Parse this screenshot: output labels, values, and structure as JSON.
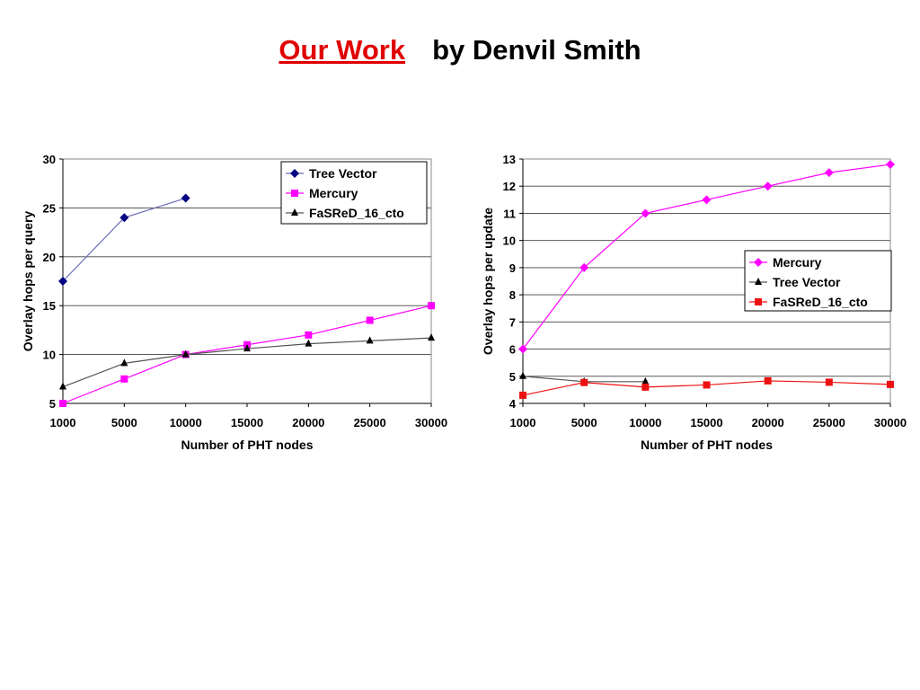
{
  "slide": {
    "title_highlight": "Our Work",
    "title_rest": "by Denvil Smith",
    "highlight_color": "#e00000"
  },
  "chart_data": [
    {
      "type": "line",
      "xlabel": "Number of PHT nodes",
      "ylabel": "Overlay hops per query",
      "ylim": [
        5,
        30
      ],
      "yticks": [
        5,
        10,
        15,
        20,
        25,
        30
      ],
      "xticks": [
        1000,
        5000,
        10000,
        15000,
        20000,
        25000,
        30000
      ],
      "grid": "horizontal",
      "legend_position": "top-right",
      "series": [
        {
          "name": "Tree Vector",
          "color": "#000080",
          "line_color": "#6c6cb8",
          "marker": "diamond",
          "x": [
            1000,
            5000,
            10000
          ],
          "values": [
            17.5,
            24,
            26
          ]
        },
        {
          "name": "Mercury",
          "color": "#ff00ff",
          "line_color": "#ff00ff",
          "marker": "square",
          "x": [
            1000,
            5000,
            10000,
            15000,
            20000,
            25000,
            30000
          ],
          "values": [
            5,
            7.5,
            10,
            11,
            12,
            13.5,
            15
          ]
        },
        {
          "name": "FaSReD_16_cto",
          "color": "#000000",
          "line_color": "#555555",
          "marker": "triangle",
          "x": [
            1000,
            5000,
            10000,
            15000,
            20000,
            25000,
            30000
          ],
          "values": [
            6.7,
            9.1,
            10,
            10.6,
            11.1,
            11.4,
            11.7
          ]
        }
      ]
    },
    {
      "type": "line",
      "xlabel": "Number of PHT nodes",
      "ylabel": "Overlay hops per update",
      "ylim": [
        4,
        13
      ],
      "yticks": [
        4,
        5,
        6,
        7,
        8,
        9,
        10,
        11,
        12,
        13
      ],
      "xticks": [
        1000,
        5000,
        10000,
        15000,
        20000,
        25000,
        30000
      ],
      "grid": "horizontal",
      "legend_position": "right",
      "series": [
        {
          "name": "Mercury",
          "color": "#ff00ff",
          "line_color": "#ff00ff",
          "marker": "diamond",
          "x": [
            1000,
            5000,
            10000,
            15000,
            20000,
            25000,
            30000
          ],
          "values": [
            6,
            9,
            11,
            11.5,
            12,
            12.5,
            12.8
          ]
        },
        {
          "name": "Tree Vector",
          "color": "#000000",
          "line_color": "#555555",
          "marker": "triangle",
          "x": [
            1000,
            5000,
            10000
          ],
          "values": [
            5,
            4.8,
            4.8
          ]
        },
        {
          "name": "FaSReD_16_cto",
          "color": "#ee1111",
          "line_color": "#ee1111",
          "marker": "square",
          "x": [
            1000,
            5000,
            10000,
            15000,
            20000,
            25000,
            30000
          ],
          "values": [
            4.3,
            4.77,
            4.6,
            4.68,
            4.83,
            4.78,
            4.7
          ]
        }
      ]
    }
  ]
}
